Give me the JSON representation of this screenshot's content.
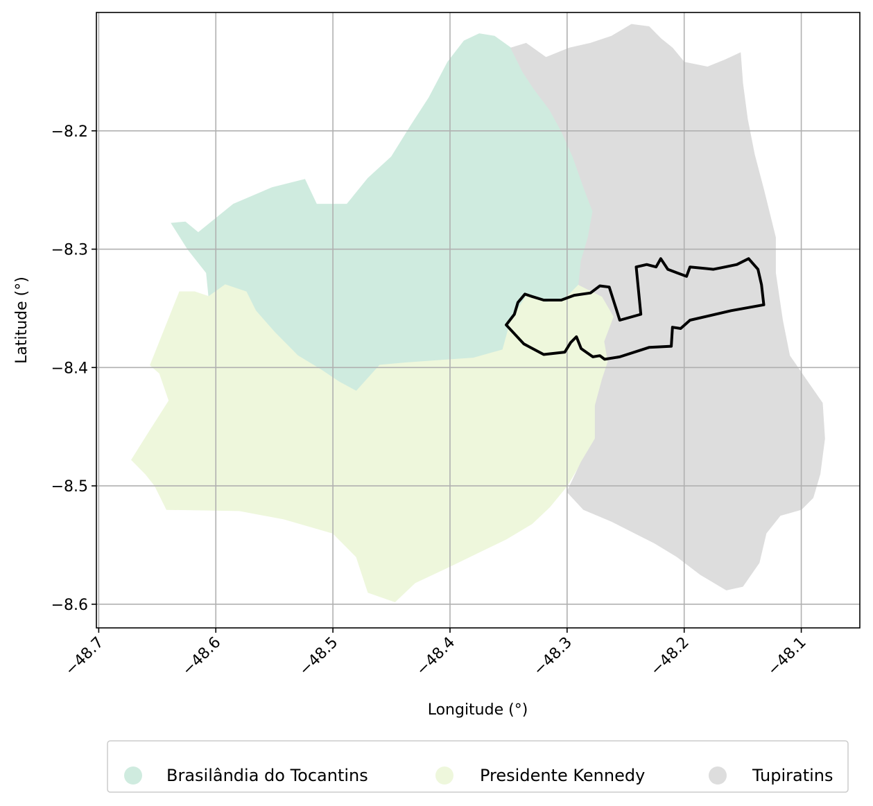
{
  "map": {
    "xlabel": "Longitude (°)",
    "ylabel": "Latitude (°)",
    "xlim": [
      -48.702,
      -48.05
    ],
    "ylim": [
      -8.62,
      -8.1
    ],
    "grid": true,
    "x_ticks": [
      {
        "value": -48.7,
        "label": "−48.7"
      },
      {
        "value": -48.6,
        "label": "−48.6"
      },
      {
        "value": -48.5,
        "label": "−48.5"
      },
      {
        "value": -48.4,
        "label": "−48.4"
      },
      {
        "value": -48.3,
        "label": "−48.3"
      },
      {
        "value": -48.2,
        "label": "−48.2"
      },
      {
        "value": -48.1,
        "label": "−48.1"
      }
    ],
    "y_ticks": [
      {
        "value": -8.2,
        "label": "−8.2"
      },
      {
        "value": -8.3,
        "label": "−8.3"
      },
      {
        "value": -8.4,
        "label": "−8.4"
      },
      {
        "value": -8.5,
        "label": "−8.5"
      },
      {
        "value": -8.6,
        "label": "−8.6"
      }
    ],
    "legend_position": "bottom-center",
    "regions": [
      {
        "name": "Brasilândia do Tocantins",
        "color": "#cfebdf",
        "polygon": [
          [
            -48.574,
            -8.336
          ],
          [
            -48.592,
            -8.33
          ],
          [
            -48.606,
            -8.34
          ],
          [
            -48.608,
            -8.32
          ],
          [
            -48.624,
            -8.3
          ],
          [
            -48.638,
            -8.278
          ],
          [
            -48.626,
            -8.277
          ],
          [
            -48.615,
            -8.286
          ],
          [
            -48.585,
            -8.262
          ],
          [
            -48.552,
            -8.248
          ],
          [
            -48.524,
            -8.241
          ],
          [
            -48.514,
            -8.262
          ],
          [
            -48.488,
            -8.262
          ],
          [
            -48.47,
            -8.24
          ],
          [
            -48.45,
            -8.222
          ],
          [
            -48.433,
            -8.195
          ],
          [
            -48.418,
            -8.172
          ],
          [
            -48.402,
            -8.142
          ],
          [
            -48.388,
            -8.124
          ],
          [
            -48.375,
            -8.118
          ],
          [
            -48.362,
            -8.12
          ],
          [
            -48.348,
            -8.13
          ],
          [
            -48.338,
            -8.15
          ],
          [
            -48.328,
            -8.165
          ],
          [
            -48.315,
            -8.182
          ],
          [
            -48.305,
            -8.2
          ],
          [
            -48.295,
            -8.222
          ],
          [
            -48.285,
            -8.25
          ],
          [
            -48.278,
            -8.268
          ],
          [
            -48.282,
            -8.29
          ],
          [
            -48.288,
            -8.31
          ],
          [
            -48.29,
            -8.33
          ],
          [
            -48.302,
            -8.342
          ],
          [
            -48.318,
            -8.345
          ],
          [
            -48.335,
            -8.34
          ],
          [
            -48.348,
            -8.36
          ],
          [
            -48.355,
            -8.385
          ],
          [
            -48.38,
            -8.392
          ],
          [
            -48.41,
            -8.394
          ],
          [
            -48.438,
            -8.396
          ],
          [
            -48.46,
            -8.398
          ],
          [
            -48.48,
            -8.42
          ],
          [
            -48.495,
            -8.412
          ],
          [
            -48.51,
            -8.402
          ],
          [
            -48.53,
            -8.39
          ],
          [
            -48.55,
            -8.37
          ],
          [
            -48.566,
            -8.352
          ]
        ]
      },
      {
        "name": "Presidente Kennedy",
        "color": "#eef7dc",
        "polygon": [
          [
            -48.631,
            -8.336
          ],
          [
            -48.656,
            -8.398
          ],
          [
            -48.648,
            -8.405
          ],
          [
            -48.64,
            -8.428
          ],
          [
            -48.658,
            -8.456
          ],
          [
            -48.672,
            -8.478
          ],
          [
            -48.66,
            -8.49
          ],
          [
            -48.652,
            -8.5
          ],
          [
            -48.642,
            -8.52
          ],
          [
            -48.58,
            -8.521
          ],
          [
            -48.542,
            -8.528
          ],
          [
            -48.5,
            -8.54
          ],
          [
            -48.48,
            -8.56
          ],
          [
            -48.47,
            -8.59
          ],
          [
            -48.447,
            -8.598
          ],
          [
            -48.43,
            -8.582
          ],
          [
            -48.4,
            -8.568
          ],
          [
            -48.375,
            -8.556
          ],
          [
            -48.352,
            -8.545
          ],
          [
            -48.33,
            -8.532
          ],
          [
            -48.315,
            -8.518
          ],
          [
            -48.3,
            -8.5
          ],
          [
            -48.288,
            -8.48
          ],
          [
            -48.276,
            -8.46
          ],
          [
            -48.276,
            -8.432
          ],
          [
            -48.27,
            -8.41
          ],
          [
            -48.265,
            -8.395
          ],
          [
            -48.268,
            -8.378
          ],
          [
            -48.26,
            -8.357
          ],
          [
            -48.27,
            -8.34
          ],
          [
            -48.29,
            -8.33
          ],
          [
            -48.302,
            -8.342
          ],
          [
            -48.318,
            -8.345
          ],
          [
            -48.335,
            -8.34
          ],
          [
            -48.348,
            -8.36
          ],
          [
            -48.355,
            -8.385
          ],
          [
            -48.38,
            -8.392
          ],
          [
            -48.41,
            -8.394
          ],
          [
            -48.438,
            -8.396
          ],
          [
            -48.46,
            -8.398
          ],
          [
            -48.48,
            -8.42
          ],
          [
            -48.495,
            -8.412
          ],
          [
            -48.51,
            -8.402
          ],
          [
            -48.53,
            -8.39
          ],
          [
            -48.55,
            -8.37
          ],
          [
            -48.566,
            -8.352
          ],
          [
            -48.574,
            -8.336
          ],
          [
            -48.592,
            -8.33
          ],
          [
            -48.606,
            -8.34
          ],
          [
            -48.618,
            -8.336
          ]
        ]
      },
      {
        "name": "Tupiratins",
        "color": "#dddddd",
        "polygon": [
          [
            -48.295,
            -8.222
          ],
          [
            -48.305,
            -8.2
          ],
          [
            -48.315,
            -8.182
          ],
          [
            -48.328,
            -8.165
          ],
          [
            -48.338,
            -8.15
          ],
          [
            -48.348,
            -8.13
          ],
          [
            -48.335,
            -8.126
          ],
          [
            -48.318,
            -8.138
          ],
          [
            -48.298,
            -8.13
          ],
          [
            -48.28,
            -8.126
          ],
          [
            -48.262,
            -8.12
          ],
          [
            -48.245,
            -8.11
          ],
          [
            -48.23,
            -8.112
          ],
          [
            -48.22,
            -8.122
          ],
          [
            -48.21,
            -8.13
          ],
          [
            -48.2,
            -8.142
          ],
          [
            -48.18,
            -8.146
          ],
          [
            -48.165,
            -8.14
          ],
          [
            -48.152,
            -8.134
          ],
          [
            -48.15,
            -8.16
          ],
          [
            -48.146,
            -8.19
          ],
          [
            -48.14,
            -8.22
          ],
          [
            -48.132,
            -8.25
          ],
          [
            -48.122,
            -8.29
          ],
          [
            -48.122,
            -8.32
          ],
          [
            -48.116,
            -8.36
          ],
          [
            -48.11,
            -8.39
          ],
          [
            -48.096,
            -8.41
          ],
          [
            -48.082,
            -8.43
          ],
          [
            -48.08,
            -8.46
          ],
          [
            -48.084,
            -8.49
          ],
          [
            -48.09,
            -8.51
          ],
          [
            -48.1,
            -8.52
          ],
          [
            -48.118,
            -8.525
          ],
          [
            -48.13,
            -8.54
          ],
          [
            -48.136,
            -8.565
          ],
          [
            -48.15,
            -8.585
          ],
          [
            -48.164,
            -8.588
          ],
          [
            -48.186,
            -8.575
          ],
          [
            -48.206,
            -8.56
          ],
          [
            -48.226,
            -8.548
          ],
          [
            -48.242,
            -8.54
          ],
          [
            -48.262,
            -8.53
          ],
          [
            -48.286,
            -8.52
          ],
          [
            -48.3,
            -8.505
          ],
          [
            -48.288,
            -8.48
          ],
          [
            -48.276,
            -8.46
          ],
          [
            -48.276,
            -8.432
          ],
          [
            -48.27,
            -8.41
          ],
          [
            -48.265,
            -8.395
          ],
          [
            -48.268,
            -8.378
          ],
          [
            -48.26,
            -8.357
          ],
          [
            -48.27,
            -8.34
          ],
          [
            -48.29,
            -8.33
          ],
          [
            -48.288,
            -8.31
          ],
          [
            -48.282,
            -8.29
          ],
          [
            -48.278,
            -8.268
          ],
          [
            -48.285,
            -8.25
          ]
        ]
      }
    ],
    "outline": {
      "color": "#000000",
      "polygon": [
        [
          -48.352,
          -8.364
        ],
        [
          -48.345,
          -8.355
        ],
        [
          -48.342,
          -8.345
        ],
        [
          -48.336,
          -8.338
        ],
        [
          -48.33,
          -8.34
        ],
        [
          -48.32,
          -8.343
        ],
        [
          -48.305,
          -8.343
        ],
        [
          -48.294,
          -8.339
        ],
        [
          -48.28,
          -8.337
        ],
        [
          -48.272,
          -8.331
        ],
        [
          -48.264,
          -8.332
        ],
        [
          -48.255,
          -8.36
        ],
        [
          -48.237,
          -8.355
        ],
        [
          -48.241,
          -8.315
        ],
        [
          -48.232,
          -8.313
        ],
        [
          -48.224,
          -8.315
        ],
        [
          -48.22,
          -8.308
        ],
        [
          -48.214,
          -8.317
        ],
        [
          -48.206,
          -8.32
        ],
        [
          -48.198,
          -8.323
        ],
        [
          -48.195,
          -8.315
        ],
        [
          -48.185,
          -8.316
        ],
        [
          -48.175,
          -8.317
        ],
        [
          -48.165,
          -8.315
        ],
        [
          -48.155,
          -8.313
        ],
        [
          -48.145,
          -8.308
        ],
        [
          -48.137,
          -8.317
        ],
        [
          -48.134,
          -8.33
        ],
        [
          -48.132,
          -8.347
        ],
        [
          -48.16,
          -8.352
        ],
        [
          -48.195,
          -8.36
        ],
        [
          -48.203,
          -8.367
        ],
        [
          -48.21,
          -8.366
        ],
        [
          -48.211,
          -8.382
        ],
        [
          -48.23,
          -8.383
        ],
        [
          -48.255,
          -8.391
        ],
        [
          -48.268,
          -8.393
        ],
        [
          -48.272,
          -8.39
        ],
        [
          -48.278,
          -8.391
        ],
        [
          -48.288,
          -8.384
        ],
        [
          -48.292,
          -8.374
        ],
        [
          -48.297,
          -8.379
        ],
        [
          -48.302,
          -8.387
        ],
        [
          -48.32,
          -8.389
        ],
        [
          -48.337,
          -8.38
        ]
      ]
    }
  }
}
